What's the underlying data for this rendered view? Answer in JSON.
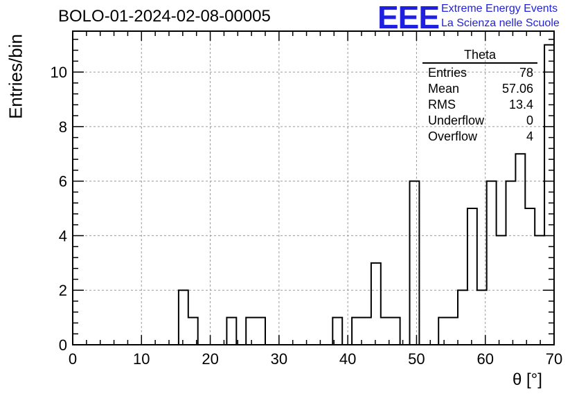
{
  "header": {
    "title": "BOLO-01-2024-02-08-00005",
    "logo_text": "EEE",
    "logo_line1": "Extreme Energy Events",
    "logo_line2": "La Scienza nelle Scuole"
  },
  "stats_box": {
    "title": "Theta",
    "rows": [
      {
        "label": "Entries",
        "value": "78"
      },
      {
        "label": "Mean",
        "value": "57.06"
      },
      {
        "label": "RMS",
        "value": "13.4"
      },
      {
        "label": "Underflow",
        "value": "0"
      },
      {
        "label": "Overflow",
        "value": "4"
      }
    ]
  },
  "chart_data": {
    "type": "bar",
    "xlabel": "θ [°]",
    "ylabel": "Entries/bin",
    "xlim": [
      0,
      70
    ],
    "ylim": [
      0,
      11.5
    ],
    "grid": true,
    "bin_width": 1.4,
    "bin_starts": [
      15.4,
      16.8,
      22.4,
      25.2,
      26.6,
      37.8,
      40.6,
      42.0,
      43.4,
      44.8,
      46.2,
      49.0,
      53.2,
      54.6,
      56.0,
      57.4,
      58.8,
      60.2,
      61.6,
      63.0,
      64.4,
      65.8,
      67.2,
      68.6
    ],
    "values": [
      2,
      1,
      1,
      1,
      1,
      1,
      1,
      1,
      3,
      1,
      1,
      6,
      1,
      1,
      2,
      5,
      2,
      6,
      4,
      6,
      7,
      5,
      4,
      11
    ],
    "x_ticks": [
      0,
      10,
      20,
      30,
      40,
      50,
      60,
      70
    ],
    "y_ticks": [
      0,
      2,
      4,
      6,
      8,
      10
    ]
  }
}
